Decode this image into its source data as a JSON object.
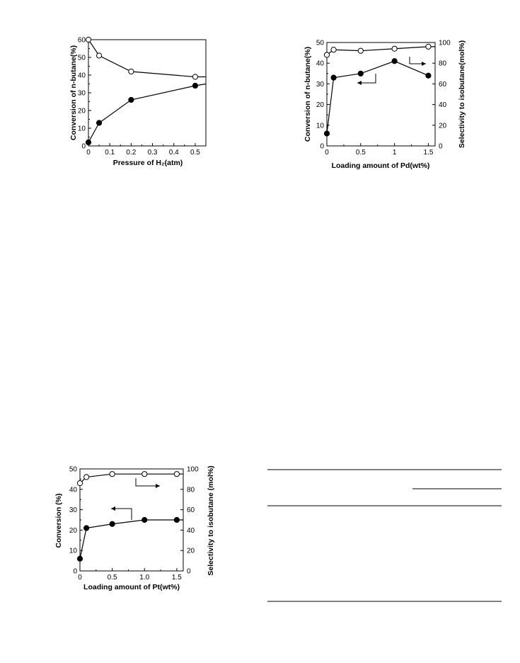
{
  "chart_data": [
    {
      "type": "line",
      "xlabel": "Pressure of H₂(atm)",
      "ylabel": "Conversion of n-butane(%)",
      "xlim": [
        0,
        0.55
      ],
      "ylim": [
        0,
        60
      ],
      "xticks": [
        "0",
        "0.1",
        "0.2",
        "0.3",
        "0.4",
        "0.5"
      ],
      "yticks": [
        "0",
        "10",
        "20",
        "30",
        "40",
        "50",
        "60"
      ],
      "grid": false,
      "series": [
        {
          "marker": "open-circle",
          "axis": "left",
          "x": [
            0,
            0.05,
            0.2,
            0.5
          ],
          "y": [
            60,
            51,
            42,
            39
          ],
          "line_end": [
            0.55,
            39
          ]
        },
        {
          "marker": "filled-circle",
          "axis": "left",
          "x": [
            0,
            0.05,
            0.2,
            0.5
          ],
          "y": [
            2,
            13,
            26,
            34
          ],
          "line_end": [
            0.55,
            35
          ]
        }
      ]
    },
    {
      "type": "line",
      "xlabel": "Loading amount of Pd(wt%)",
      "ylabel": "Conversion of n-butane(%)",
      "y2label": "Selectivity to isobutane(mol%)",
      "xlim": [
        0,
        1.6
      ],
      "ylim": [
        0,
        50
      ],
      "y2lim": [
        0,
        100
      ],
      "xticks": [
        "0",
        "0.5",
        "1",
        "1.5"
      ],
      "yticks": [
        "0",
        "10",
        "20",
        "30",
        "40",
        "50"
      ],
      "y2ticks": [
        "0",
        "20",
        "40",
        "60",
        "80",
        "100"
      ],
      "grid": false,
      "series": [
        {
          "marker": "open-circle",
          "axis": "right",
          "x": [
            0,
            0.1,
            0.5,
            1.0,
            1.5
          ],
          "y": [
            88,
            93,
            92,
            94,
            96
          ],
          "line_end": [
            1.6,
            96
          ]
        },
        {
          "marker": "filled-circle",
          "axis": "left",
          "x": [
            0,
            0.1,
            0.5,
            1.0,
            1.5
          ],
          "y": [
            6,
            33,
            35,
            41,
            34
          ]
        }
      ]
    },
    {
      "type": "line",
      "xlabel": "Loading amount of Pt(wt%)",
      "ylabel": "Conversion (%)",
      "y2label": "Selectivity to isobutane (mol%)",
      "xlim": [
        0,
        1.6
      ],
      "ylim": [
        0,
        50
      ],
      "y2lim": [
        0,
        100
      ],
      "xticks": [
        "0",
        "0.5",
        "1.0",
        "1.5"
      ],
      "yticks": [
        "0",
        "10",
        "20",
        "30",
        "40",
        "50"
      ],
      "y2ticks": [
        "0",
        "20",
        "40",
        "60",
        "80",
        "100"
      ],
      "grid": false,
      "series": [
        {
          "marker": "open-circle",
          "axis": "right",
          "x": [
            0,
            0.1,
            0.5,
            1.0,
            1.5
          ],
          "y": [
            86,
            92,
            95,
            95,
            95
          ],
          "line_end": [
            1.6,
            95
          ]
        },
        {
          "marker": "filled-circle",
          "axis": "left",
          "x": [
            0,
            0.1,
            0.5,
            1.0,
            1.5
          ],
          "y": [
            6,
            21,
            23,
            25,
            25
          ],
          "line_end": [
            1.6,
            25
          ]
        }
      ]
    }
  ]
}
